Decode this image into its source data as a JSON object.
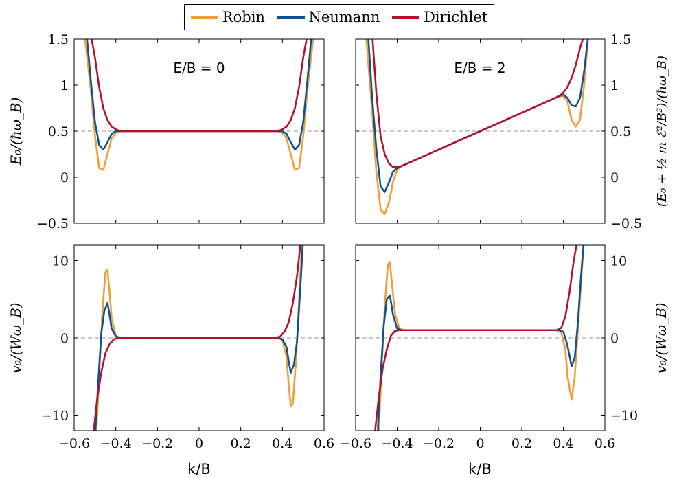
{
  "legend": [
    {
      "label": "Robin",
      "color": "#f39c34"
    },
    {
      "label": "Neumann",
      "color": "#0b5394"
    },
    {
      "label": "Dirichlet",
      "color": "#b3122b"
    }
  ],
  "labels": {
    "xlabel": "k/B",
    "ylabel_top_left": "E₀/(ħω_B)",
    "ylabel_top_right": "(E₀ + ½ m ℰ²/B²)/(ħω_B)",
    "ylabel_bottom_left": "v₀/(Wω_B)",
    "ylabel_bottom_right": "v₀/(Wω_B)",
    "annot_left": "E/B = 0",
    "annot_right": "E/B = 2"
  },
  "chart_data": [
    {
      "type": "line",
      "panel": "top-left",
      "annotation": "E/B = 0",
      "xlim": [
        -0.6,
        0.6
      ],
      "ylim": [
        -0.5,
        1.5
      ],
      "ref_line_y": 0.5,
      "xticks": [
        "−0.6",
        "−0.4",
        "−0.2",
        "0",
        "0.2",
        "0.4",
        "0.6"
      ],
      "yticks": [
        "−0.5",
        "0",
        "0.5",
        "1",
        "1.5"
      ],
      "series": [
        {
          "name": "Robin",
          "x": [
            -0.55,
            -0.52,
            -0.5,
            -0.48,
            -0.46,
            -0.44,
            -0.42,
            -0.4,
            -0.38,
            -0.3,
            0,
            0.3,
            0.38,
            0.4,
            0.42,
            0.44,
            0.46,
            0.48,
            0.5,
            0.52,
            0.55
          ],
          "y": [
            1.55,
            0.95,
            0.45,
            0.1,
            0.08,
            0.25,
            0.42,
            0.48,
            0.5,
            0.5,
            0.5,
            0.5,
            0.5,
            0.48,
            0.42,
            0.25,
            0.08,
            0.1,
            0.45,
            0.95,
            1.55
          ]
        },
        {
          "name": "Neumann",
          "x": [
            -0.54,
            -0.52,
            -0.5,
            -0.48,
            -0.46,
            -0.44,
            -0.42,
            -0.4,
            -0.38,
            -0.3,
            0,
            0.3,
            0.38,
            0.4,
            0.42,
            0.44,
            0.46,
            0.48,
            0.5,
            0.52,
            0.54
          ],
          "y": [
            1.55,
            1.05,
            0.6,
            0.35,
            0.3,
            0.38,
            0.47,
            0.5,
            0.5,
            0.5,
            0.5,
            0.5,
            0.5,
            0.5,
            0.47,
            0.38,
            0.3,
            0.35,
            0.6,
            1.05,
            1.55
          ]
        },
        {
          "name": "Dirichlet",
          "x": [
            -0.52,
            -0.5,
            -0.48,
            -0.46,
            -0.44,
            -0.42,
            -0.4,
            -0.38,
            -0.3,
            0,
            0.3,
            0.38,
            0.4,
            0.42,
            0.44,
            0.46,
            0.48,
            0.5,
            0.52
          ],
          "y": [
            1.55,
            1.3,
            0.98,
            0.75,
            0.62,
            0.55,
            0.52,
            0.5,
            0.5,
            0.5,
            0.5,
            0.5,
            0.52,
            0.55,
            0.62,
            0.75,
            0.98,
            1.3,
            1.55
          ]
        }
      ]
    },
    {
      "type": "line",
      "panel": "top-right",
      "annotation": "E/B = 2",
      "xlim": [
        -0.6,
        0.6
      ],
      "ylim": [
        -0.5,
        1.5
      ],
      "ref_line_y": 0.5,
      "xticks": [
        "−0.6",
        "−0.4",
        "−0.2",
        "0",
        "0.2",
        "0.4",
        "0.6"
      ],
      "yticks": [
        "−0.5",
        "0",
        "0.5",
        "1",
        "1.5"
      ],
      "series": [
        {
          "name": "Robin",
          "x": [
            -0.55,
            -0.52,
            -0.5,
            -0.48,
            -0.46,
            -0.44,
            -0.42,
            -0.4,
            -0.38,
            0,
            0.38,
            0.4,
            0.42,
            0.44,
            0.46,
            0.48,
            0.5,
            0.52
          ],
          "y": [
            1.55,
            0.7,
            0.05,
            -0.35,
            -0.4,
            -0.28,
            -0.05,
            0.08,
            0.12,
            0.5,
            0.88,
            0.88,
            0.82,
            0.62,
            0.55,
            0.62,
            1.0,
            1.55
          ]
        },
        {
          "name": "Neumann",
          "x": [
            -0.54,
            -0.52,
            -0.5,
            -0.48,
            -0.46,
            -0.44,
            -0.42,
            -0.4,
            -0.38,
            0,
            0.38,
            0.4,
            0.42,
            0.44,
            0.46,
            0.48,
            0.5,
            0.52
          ],
          "y": [
            1.55,
            0.85,
            0.3,
            -0.1,
            -0.16,
            -0.06,
            0.06,
            0.1,
            0.12,
            0.5,
            0.88,
            0.9,
            0.86,
            0.78,
            0.77,
            0.86,
            1.15,
            1.55
          ]
        },
        {
          "name": "Dirichlet",
          "x": [
            -0.52,
            -0.5,
            -0.48,
            -0.46,
            -0.44,
            -0.42,
            -0.4,
            -0.38,
            0,
            0.38,
            0.4,
            0.42,
            0.44,
            0.46,
            0.48,
            0.5
          ],
          "y": [
            1.55,
            0.9,
            0.45,
            0.25,
            0.15,
            0.11,
            0.11,
            0.12,
            0.5,
            0.88,
            0.92,
            0.98,
            1.08,
            1.22,
            1.4,
            1.55
          ]
        }
      ]
    },
    {
      "type": "line",
      "panel": "bottom-left",
      "xlim": [
        -0.6,
        0.6
      ],
      "ylim": [
        -12,
        12
      ],
      "ref_line_y": 0,
      "xticks": [
        "−0.6",
        "−0.4",
        "−0.2",
        "0",
        "0.2",
        "0.4",
        "0.6"
      ],
      "yticks": [
        "−10",
        "0",
        "10"
      ],
      "series": [
        {
          "name": "Robin",
          "x": [
            -0.495,
            -0.48,
            -0.465,
            -0.45,
            -0.44,
            -0.43,
            -0.42,
            -0.4,
            -0.38,
            0,
            0.38,
            0.4,
            0.42,
            0.43,
            0.44,
            0.45,
            0.465,
            0.48,
            0.495
          ],
          "y": [
            -13,
            -5,
            3,
            8.5,
            8.8,
            6,
            2.5,
            0.3,
            0,
            0,
            0,
            -0.3,
            -2.5,
            -6,
            -8.8,
            -8.5,
            -3,
            5,
            13
          ]
        },
        {
          "name": "Neumann",
          "x": [
            -0.5,
            -0.485,
            -0.47,
            -0.455,
            -0.44,
            -0.43,
            -0.42,
            -0.4,
            -0.38,
            0,
            0.38,
            0.4,
            0.42,
            0.43,
            0.44,
            0.455,
            0.47,
            0.485,
            0.5
          ],
          "y": [
            -13,
            -6,
            0.5,
            3.5,
            4.5,
            3,
            1.2,
            0.2,
            0,
            0,
            0,
            -0.2,
            -1.2,
            -3,
            -4.5,
            -3.5,
            -0.5,
            6,
            13
          ]
        },
        {
          "name": "Dirichlet",
          "x": [
            -0.51,
            -0.49,
            -0.47,
            -0.45,
            -0.43,
            -0.41,
            -0.39,
            -0.37,
            0,
            0.37,
            0.39,
            0.41,
            0.43,
            0.45,
            0.47,
            0.49
          ],
          "y": [
            -13,
            -8,
            -4.5,
            -2,
            -0.8,
            -0.2,
            0,
            0,
            0,
            0,
            0.2,
            0.8,
            2,
            4.5,
            8,
            13
          ]
        }
      ]
    },
    {
      "type": "line",
      "panel": "bottom-right",
      "xlim": [
        -0.6,
        0.6
      ],
      "ylim": [
        -12,
        12
      ],
      "ref_line_y": 0,
      "xticks": [
        "−0.6",
        "−0.4",
        "−0.2",
        "0",
        "0.2",
        "0.4",
        "0.6"
      ],
      "yticks": [
        "−10",
        "0",
        "10"
      ],
      "series": [
        {
          "name": "Robin",
          "x": [
            -0.49,
            -0.475,
            -0.46,
            -0.445,
            -0.435,
            -0.425,
            -0.41,
            -0.39,
            -0.37,
            0,
            0.37,
            0.39,
            0.41,
            0.42,
            0.44,
            0.455,
            0.47,
            0.485,
            0.5
          ],
          "y": [
            -13,
            -4,
            4,
            9.5,
            9.8,
            7,
            3,
            1.3,
            1,
            1,
            1,
            0.7,
            -1.5,
            -5,
            -8,
            -5,
            1,
            7,
            13
          ]
        },
        {
          "name": "Neumann",
          "x": [
            -0.495,
            -0.48,
            -0.465,
            -0.45,
            -0.435,
            -0.42,
            -0.4,
            -0.38,
            0,
            0.38,
            0.4,
            0.42,
            0.44,
            0.455,
            0.47,
            0.485,
            0.5
          ],
          "y": [
            -13,
            -5,
            1.5,
            5,
            5.5,
            3,
            1.2,
            1,
            1,
            1,
            0.8,
            -1,
            -3.7,
            -2.5,
            2,
            8,
            13
          ]
        },
        {
          "name": "Dirichlet",
          "x": [
            -0.51,
            -0.49,
            -0.47,
            -0.45,
            -0.43,
            -0.41,
            -0.39,
            -0.37,
            0,
            0.37,
            0.39,
            0.41,
            0.43,
            0.45,
            0.47
          ],
          "y": [
            -13,
            -8,
            -4,
            -1.5,
            0.3,
            0.9,
            1,
            1,
            1,
            1,
            1.3,
            2.8,
            6,
            10,
            13
          ]
        }
      ]
    }
  ]
}
